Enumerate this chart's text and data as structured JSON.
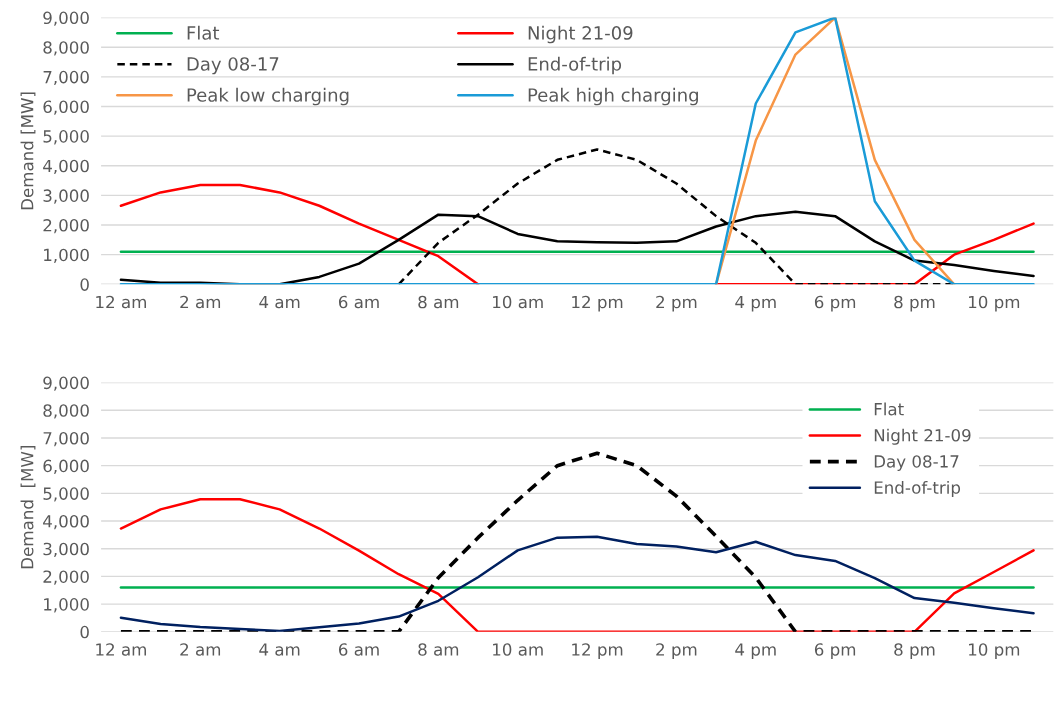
{
  "chart_data": [
    {
      "type": "line",
      "ylabel": "Demand [MW]",
      "categories": [
        "12 am",
        null,
        "2 am",
        null,
        "4 am",
        null,
        "6 am",
        null,
        "8 am",
        null,
        "10 am",
        null,
        "12 pm",
        null,
        "2 pm",
        null,
        "4 pm",
        null,
        "6 pm",
        null,
        "8 pm",
        null,
        "10 pm",
        null
      ],
      "ylim": [
        0,
        9000
      ],
      "yticks": [
        {
          "value": 0,
          "label": "0"
        },
        {
          "value": 1000,
          "label": "1,000"
        },
        {
          "value": 2000,
          "label": "2,000"
        },
        {
          "value": 3000,
          "label": "3,000"
        },
        {
          "value": 4000,
          "label": "4,000"
        },
        {
          "value": 5000,
          "label": "5,000"
        },
        {
          "value": 6000,
          "label": "6,000"
        },
        {
          "value": 7000,
          "label": "7,000"
        },
        {
          "value": 8000,
          "label": "8,000"
        },
        {
          "value": 9000,
          "label": "9,000"
        }
      ],
      "grid": "y",
      "legend": "top left",
      "series": [
        {
          "name": "Flat",
          "color": "#00b050",
          "line_style": "solid",
          "values": [
            1100,
            1100,
            1100,
            1100,
            1100,
            1100,
            1100,
            1100,
            1100,
            1100,
            1100,
            1100,
            1100,
            1100,
            1100,
            1100,
            1100,
            1100,
            1100,
            1100,
            1100,
            1100,
            1100,
            1100
          ]
        },
        {
          "name": "Night 21-09",
          "color": "#ff0000",
          "line_style": "solid",
          "values": [
            2650,
            3100,
            3350,
            3350,
            3100,
            2650,
            2050,
            1500,
            950,
            0,
            null,
            null,
            null,
            null,
            null,
            0,
            0,
            0,
            0,
            0,
            0,
            1000,
            1500,
            2050
          ]
        },
        {
          "name": "Day 08-17",
          "color": "#000000",
          "line_style": "dashed",
          "values": [
            null,
            null,
            null,
            null,
            null,
            null,
            null,
            0,
            1400,
            2350,
            3400,
            4200,
            4550,
            4200,
            3400,
            2300,
            1400,
            0,
            0,
            0,
            0,
            0,
            null,
            null
          ]
        },
        {
          "name": "End-of-trip",
          "color": "#000000",
          "line_style": "solid",
          "values": [
            150,
            50,
            50,
            0,
            0,
            250,
            700,
            1500,
            2350,
            2300,
            1700,
            1450,
            1420,
            1400,
            1450,
            1950,
            2300,
            2450,
            2300,
            1450,
            800,
            650,
            450,
            280
          ]
        },
        {
          "name": "Peak low charging",
          "color": "#f79646",
          "line_style": "solid",
          "values": [
            null,
            null,
            null,
            null,
            null,
            null,
            null,
            null,
            null,
            null,
            null,
            null,
            null,
            null,
            null,
            0,
            4850,
            7750,
            9000,
            4200,
            1500,
            0,
            null,
            null
          ]
        },
        {
          "name": "Peak high charging",
          "color": "#1a9bd7",
          "line_style": "solid",
          "values": [
            0,
            0,
            0,
            0,
            0,
            0,
            0,
            0,
            0,
            0,
            0,
            0,
            0,
            0,
            0,
            0,
            6100,
            8500,
            9000,
            2800,
            800,
            0,
            0,
            0
          ]
        }
      ]
    },
    {
      "type": "line",
      "ylabel": "Demand  [MW]",
      "categories": [
        "12 am",
        null,
        "2 am",
        null,
        "4 am",
        null,
        "6 am",
        null,
        "8 am",
        null,
        "10 am",
        null,
        "12 pm",
        null,
        "2 pm",
        null,
        "4 pm",
        null,
        "6 pm",
        null,
        "8 pm",
        null,
        "10 pm",
        null
      ],
      "ylim": [
        0,
        9000
      ],
      "yticks": [
        {
          "value": 0,
          "label": "0"
        },
        {
          "value": 1000,
          "label": "1,000"
        },
        {
          "value": 2000,
          "label": "2,000"
        },
        {
          "value": 3000,
          "label": "3,000"
        },
        {
          "value": 4000,
          "label": "4,000"
        },
        {
          "value": 5000,
          "label": "5,000"
        },
        {
          "value": 6000,
          "label": "6,000"
        },
        {
          "value": 7000,
          "label": "7,000"
        },
        {
          "value": 8000,
          "label": "8,000"
        },
        {
          "value": 9000,
          "label": "9,000"
        }
      ],
      "grid": "y",
      "legend": "top right",
      "series": [
        {
          "name": "Flat",
          "color": "#00b050",
          "line_style": "solid",
          "values": [
            1600,
            1600,
            1600,
            1600,
            1600,
            1600,
            1600,
            1600,
            1600,
            1600,
            1600,
            1600,
            1600,
            1600,
            1600,
            1600,
            1600,
            1600,
            1600,
            1600,
            1600,
            1600,
            1600,
            1600
          ]
        },
        {
          "name": "Night 21-09",
          "color": "#ff0000",
          "line_style": "solid",
          "values": [
            3730,
            4420,
            4790,
            4790,
            4420,
            3730,
            2930,
            2080,
            1370,
            0,
            0,
            0,
            0,
            0,
            0,
            0,
            0,
            0,
            0,
            0,
            0,
            1390,
            2160,
            2940
          ]
        },
        {
          "name": "Day 08-17",
          "color": "#000000",
          "line_style": "dashed",
          "values": [
            0,
            0,
            0,
            0,
            0,
            0,
            0,
            0,
            1950,
            3400,
            4750,
            6000,
            6450,
            6000,
            4900,
            3450,
            1960,
            0,
            0,
            0,
            0,
            0,
            0,
            0
          ]
        },
        {
          "name": "End-of-trip",
          "color": "#002060",
          "line_style": "solid",
          "values": [
            510,
            280,
            170,
            100,
            30,
            160,
            300,
            550,
            1120,
            1970,
            2940,
            3400,
            3430,
            3170,
            3080,
            2870,
            3250,
            2770,
            2560,
            1940,
            1220,
            1050,
            850,
            670
          ]
        }
      ]
    }
  ]
}
